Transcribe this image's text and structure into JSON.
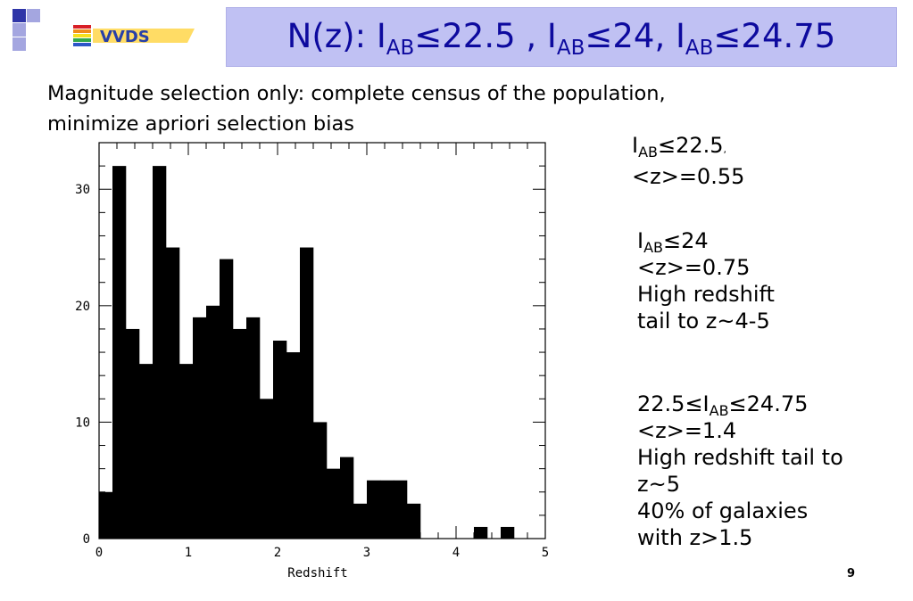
{
  "slide": {
    "title": {
      "prefix": "N(z): I",
      "sub1": "AB",
      "part1": "≤22.5 , I",
      "sub2": "AB",
      "part2": "≤24, I",
      "sub3": "AB",
      "part3": "≤24.75"
    },
    "logo_text": "VVDS",
    "intro_line1": "Magnitude selection only: complete census of the population,",
    "intro_line2": "minimize apriori selection bias",
    "notes": {
      "n1_i": "I",
      "n1_sub": "AB",
      "n1_rest": "≤22.5",
      "n1_comma": ",",
      "n1_z": "<z>=0.55",
      "n2_i": "I",
      "n2_sub": "AB",
      "n2_rest": "≤24",
      "n2_z": "<z>=0.75",
      "n2_l3": "High redshift",
      "n2_l4": "tail to z~4-5",
      "n3_pre": "22.5≤I",
      "n3_sub": "AB",
      "n3_rest": "≤24.75",
      "n3_z": "<z>=1.4",
      "n3_l3": "High redshift tail to",
      "n3_l4": "z~5",
      "n3_l5": "40% of galaxies",
      "n3_l6": "with z>1.5"
    },
    "page_number": "9",
    "colors": {
      "title_bg": "#c0c1f3",
      "title_text": "#0d0a9e",
      "square_dark": "#2f35a8",
      "square_light": "#a4a6e0"
    }
  },
  "chart_data": {
    "type": "bar",
    "xlabel": "Redshift",
    "ylabel": "",
    "xlim": [
      0,
      5
    ],
    "ylim": [
      0,
      34
    ],
    "xticks": [
      "0",
      "1",
      "2",
      "3",
      "4",
      "5"
    ],
    "yticks": [
      "0",
      "10",
      "20",
      "30"
    ],
    "bin_width": 0.15,
    "bin_starts": [
      0.0,
      0.15,
      0.3,
      0.45,
      0.6,
      0.75,
      0.9,
      1.05,
      1.2,
      1.35,
      1.5,
      1.65,
      1.8,
      1.95,
      2.1,
      2.25,
      2.4,
      2.55,
      2.7,
      2.85,
      3.0,
      3.15,
      3.3,
      3.45,
      3.6,
      3.75,
      3.9,
      4.05,
      4.2,
      4.35,
      4.5,
      4.65
    ],
    "values": [
      4,
      32,
      18,
      15,
      32,
      25,
      15,
      19,
      20,
      24,
      18,
      19,
      12,
      17,
      16,
      25,
      10,
      6,
      7,
      3,
      5,
      5,
      5,
      3,
      0,
      0,
      0,
      0,
      1,
      0,
      1,
      0
    ],
    "grid": false
  }
}
